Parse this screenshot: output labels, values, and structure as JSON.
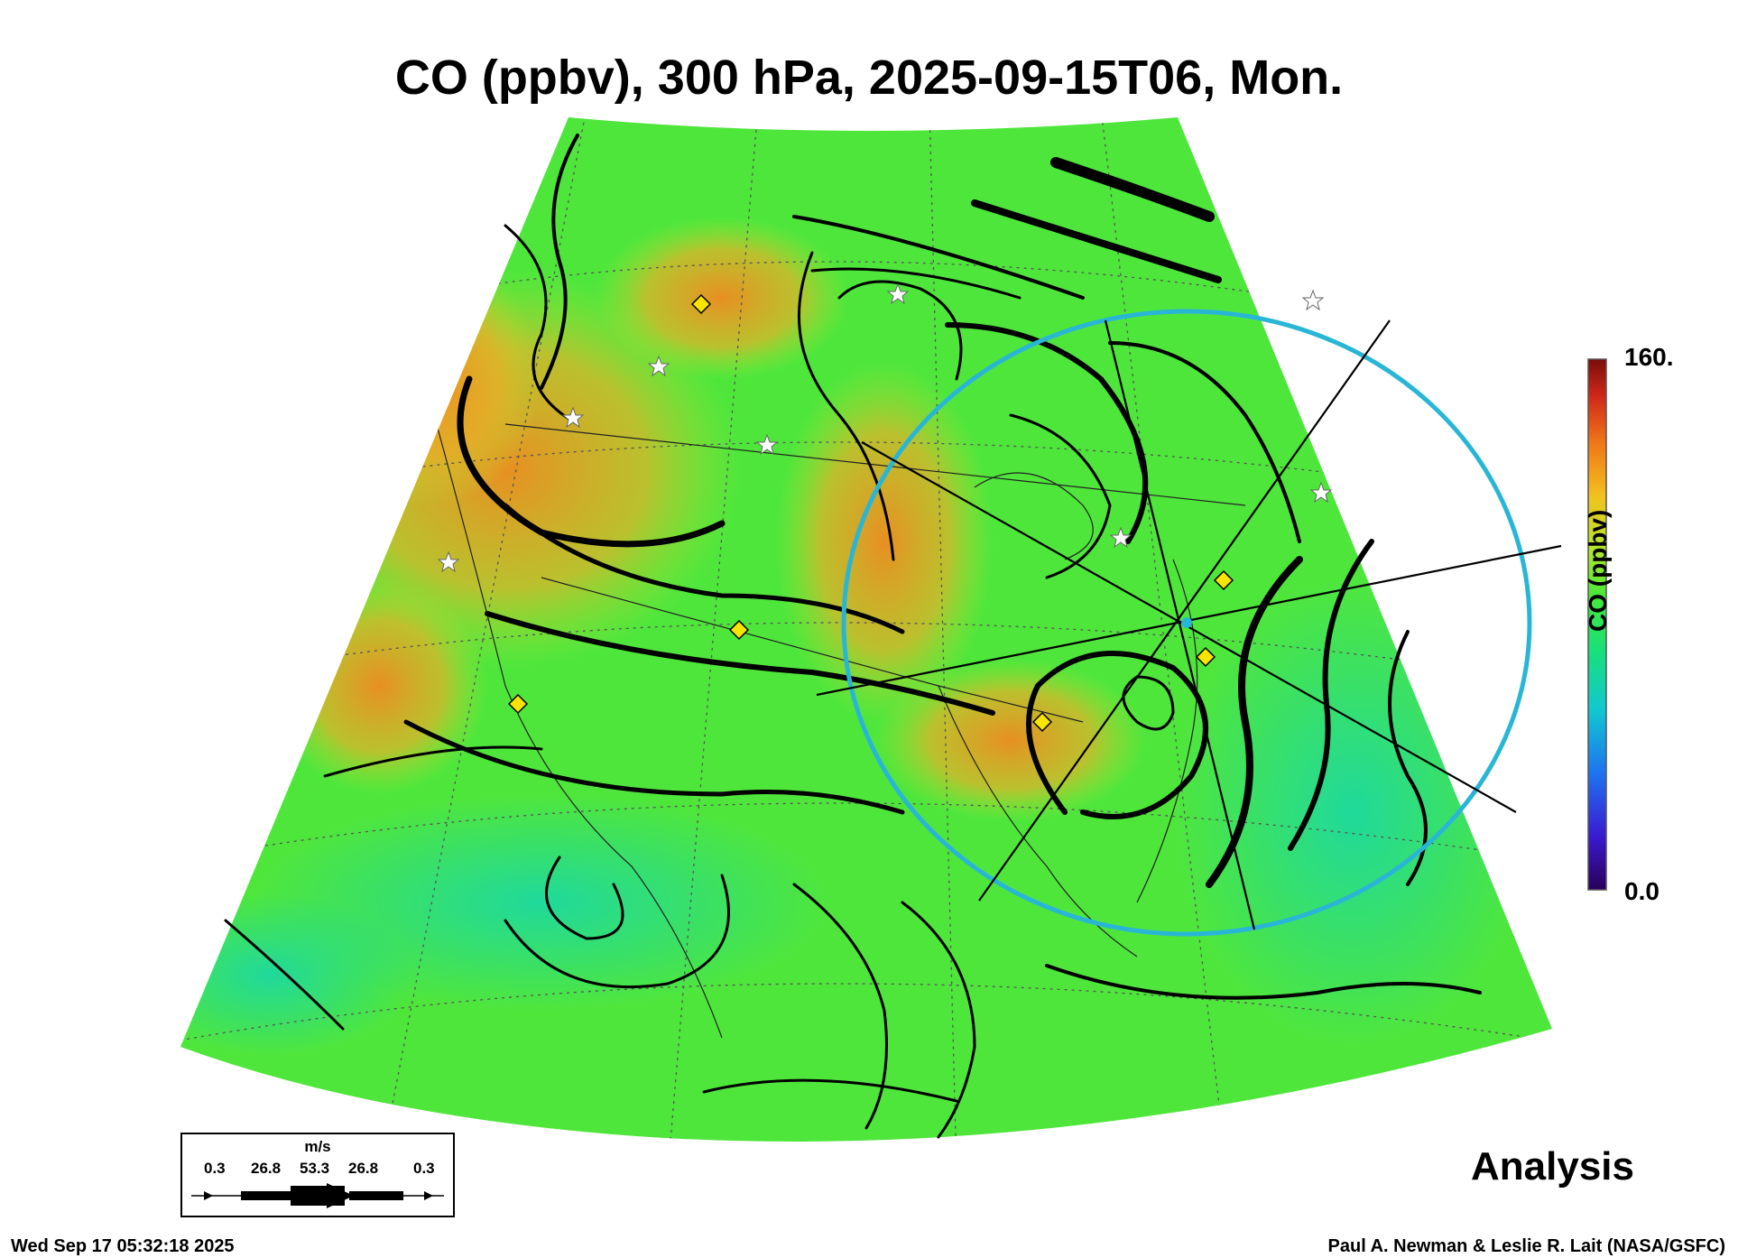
{
  "title": "CO (ppbv), 300 hPa, 2025-09-15T06, Mon.",
  "colorbar": {
    "title": "CO (ppbv)",
    "max_label": "160.",
    "min_label": "0.0",
    "colors": [
      "#2a005a",
      "#3a1ad0",
      "#1e74f0",
      "#11c8d0",
      "#18e07a",
      "#44e83a",
      "#b0e62a",
      "#f2c21e",
      "#f07818",
      "#d0281a",
      "#7a0e08"
    ]
  },
  "legend": {
    "unit": "m/s",
    "values": [
      "0.3",
      "26.8",
      "53.3",
      "26.8",
      "0.3"
    ]
  },
  "analysis_label": "Analysis",
  "footer": {
    "timestamp": "Wed Sep 17 05:32:18 2025",
    "credit": "Paul A. Newman & Leslie R. Lait (NASA/GSFC)"
  }
}
